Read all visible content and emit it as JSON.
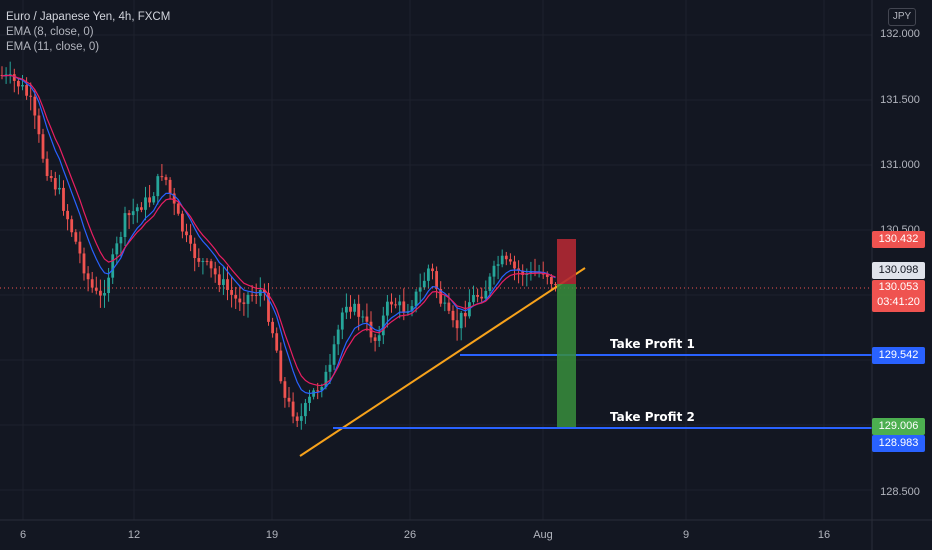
{
  "header": {
    "symbol": "Euro / Japanese Yen, 4h, FXCM",
    "indicators": [
      "EMA (8, close, 0)",
      "EMA (11, close, 0)"
    ],
    "currency_button": "JPY"
  },
  "price_axis": {
    "ticks": [
      "132.000",
      "131.500",
      "131.000",
      "130.500",
      "128.500"
    ]
  },
  "time_axis": {
    "ticks": [
      "6",
      "12",
      "19",
      "26",
      "Aug",
      "9",
      "16"
    ]
  },
  "price_tags": {
    "stop": "130.432",
    "last_close": "130.098",
    "current": "130.053",
    "countdown": "03:41:20",
    "tp1": "129.542",
    "tp2_entry": "129.006",
    "tp2": "128.983"
  },
  "annotations": {
    "tp1_label": "Take Profit 1",
    "tp2_label": "Take Profit 2"
  },
  "colors": {
    "background": "#131722",
    "up_candle": "#26a69a",
    "down_candle": "#ef5350",
    "ema_fast": "#2962ff",
    "ema_slow": "#e91e63",
    "trendline": "#f7a21b",
    "tp_line": "#2962ff",
    "stop_zone": "#b22833",
    "profit_zone": "#388e3c"
  }
}
